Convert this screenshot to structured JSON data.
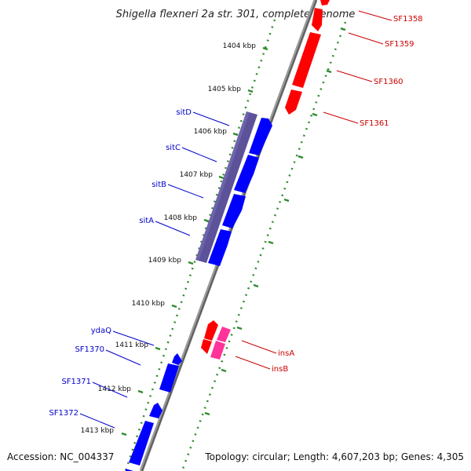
{
  "title": "Shigella flexneri 2a str. 301, complete genome",
  "footer": {
    "accession": "Accession: NC_004337",
    "summary": "Topology: circular; Length: 4,607,203 bp; Genes: 4,305"
  },
  "ticks": [
    "1404 kbp",
    "1405 kbp",
    "1406 kbp",
    "1407 kbp",
    "1408 kbp",
    "1409 kbp",
    "1410 kbp",
    "1411 kbp",
    "1412 kbp",
    "1413 kbp"
  ],
  "genes_left": [
    "sitD",
    "sitC",
    "sitB",
    "sitA",
    "ydaQ",
    "SF1370",
    "SF1371",
    "SF1372"
  ],
  "genes_right": [
    "SF1358",
    "SF1359",
    "SF1360",
    "SF1361",
    "insA",
    "insB"
  ],
  "colors": {
    "forward_gene": "#0000ff",
    "reverse_gene": "#ff0000",
    "insertion_gene": "#ff3399",
    "operon": "#4a3f8f",
    "backbone": "#808080",
    "tick": "#2e8b2e",
    "label_blue": "#0000cc",
    "label_red": "#cc0000"
  }
}
